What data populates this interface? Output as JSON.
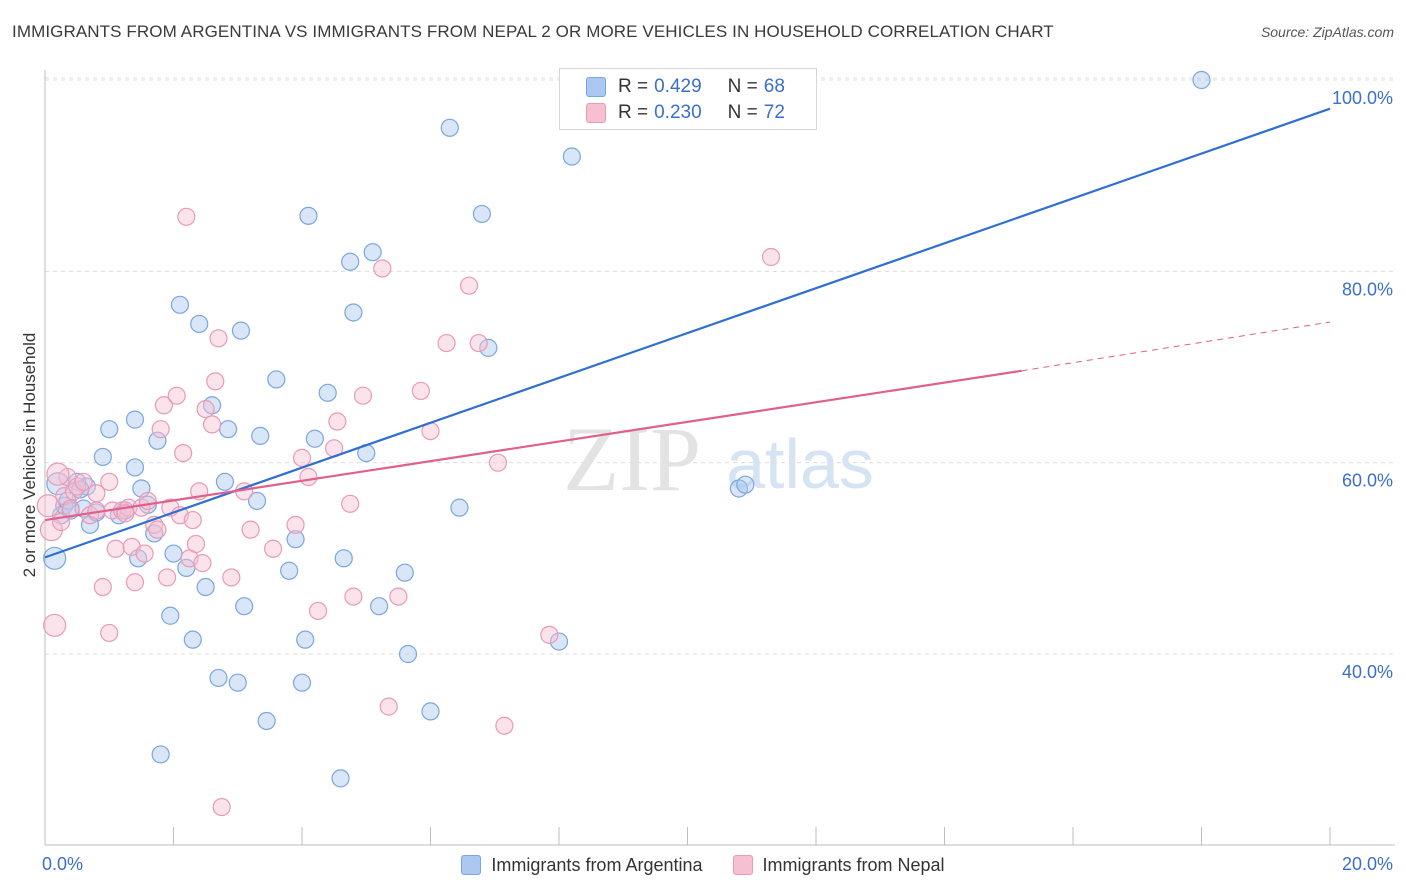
{
  "header": {
    "title": "IMMIGRANTS FROM ARGENTINA VS IMMIGRANTS FROM NEPAL 2 OR MORE VEHICLES IN HOUSEHOLD CORRELATION CHART",
    "source": "Source: ZipAtlas.com"
  },
  "watermark": {
    "zip": "ZIP",
    "atlas": "atlas"
  },
  "legend_top": {
    "argentina": {
      "r_label": "R =",
      "r_value": "0.429",
      "n_label": "N =",
      "n_value": "68"
    },
    "nepal": {
      "r_label": "R =",
      "r_value": "0.230",
      "n_label": "N =",
      "n_value": "72"
    }
  },
  "legend_bottom": {
    "argentina": "Immigrants from Argentina",
    "nepal": "Immigrants from Nepal"
  },
  "colors": {
    "blue_fill": "#aac8f0",
    "blue_stroke": "#7aa6df",
    "blue_line": "#2f6fd1",
    "pink_fill": "#f7c0d2",
    "pink_stroke": "#e99ab6",
    "pink_line": "#e0608c",
    "tick_text": "#3b6fc9",
    "grid": "#dcdcdc"
  },
  "chart_data": {
    "type": "scatter",
    "title": "IMMIGRANTS FROM ARGENTINA VS IMMIGRANTS FROM NEPAL 2 OR MORE VEHICLES IN HOUSEHOLD CORRELATION CHART",
    "xlabel": "",
    "ylabel": "2 or more Vehicles in Household",
    "xlim": [
      0,
      20
    ],
    "ylim": [
      18,
      102
    ],
    "x_tick_labels": [
      "0.0%",
      "20.0%"
    ],
    "y_ticks": [
      {
        "value": 40,
        "label": "40.0%"
      },
      {
        "value": 60,
        "label": "60.0%"
      },
      {
        "value": 80,
        "label": "80.0%"
      },
      {
        "value": 100,
        "label": "100.0%"
      }
    ],
    "series": [
      {
        "name": "Immigrants from Argentina",
        "color": "blue",
        "R": 0.429,
        "N": 68,
        "trend": {
          "x0": 0,
          "y0": 50.1,
          "x1": 20,
          "y1": 97.0
        },
        "points": [
          [
            0.15,
            50.0
          ],
          [
            0.2,
            57.8
          ],
          [
            0.25,
            54.5
          ],
          [
            0.3,
            55.5
          ],
          [
            0.35,
            56.0
          ],
          [
            0.4,
            55.0
          ],
          [
            0.5,
            58.0
          ],
          [
            0.6,
            55.2
          ],
          [
            0.65,
            57.5
          ],
          [
            0.7,
            53.5
          ],
          [
            0.8,
            54.8
          ],
          [
            0.9,
            60.6
          ],
          [
            1.0,
            63.5
          ],
          [
            1.15,
            54.5
          ],
          [
            1.4,
            64.5
          ],
          [
            1.4,
            59.5
          ],
          [
            1.45,
            50.0
          ],
          [
            1.5,
            57.3
          ],
          [
            1.6,
            55.6
          ],
          [
            1.7,
            52.6
          ],
          [
            1.75,
            62.3
          ],
          [
            1.95,
            44.0
          ],
          [
            2.0,
            50.5
          ],
          [
            2.1,
            76.5
          ],
          [
            2.2,
            49.0
          ],
          [
            2.3,
            41.5
          ],
          [
            2.4,
            74.5
          ],
          [
            2.5,
            47.0
          ],
          [
            2.6,
            66.0
          ],
          [
            2.8,
            58.0
          ],
          [
            2.85,
            63.5
          ],
          [
            3.0,
            37.0
          ],
          [
            3.05,
            73.8
          ],
          [
            3.1,
            45.0
          ],
          [
            3.3,
            56.0
          ],
          [
            3.35,
            62.8
          ],
          [
            3.45,
            33.0
          ],
          [
            3.6,
            68.7
          ],
          [
            3.8,
            48.7
          ],
          [
            3.9,
            52.0
          ],
          [
            4.0,
            37.0
          ],
          [
            4.05,
            41.5
          ],
          [
            4.1,
            85.8
          ],
          [
            4.2,
            62.5
          ],
          [
            4.4,
            67.3
          ],
          [
            4.6,
            27.0
          ],
          [
            4.65,
            50.0
          ],
          [
            4.75,
            81.0
          ],
          [
            4.8,
            75.7
          ],
          [
            5.0,
            61.0
          ],
          [
            5.1,
            82.0
          ],
          [
            5.2,
            45.0
          ],
          [
            5.6,
            48.5
          ],
          [
            5.65,
            40.0
          ],
          [
            6.0,
            34.0
          ],
          [
            6.3,
            95.0
          ],
          [
            6.45,
            55.3
          ],
          [
            6.8,
            86.0
          ],
          [
            6.9,
            72.0
          ],
          [
            8.0,
            41.3
          ],
          [
            8.2,
            92.0
          ],
          [
            10.8,
            57.3
          ],
          [
            10.9,
            57.7
          ],
          [
            18.0,
            100.0
          ],
          [
            1.8,
            29.5
          ],
          [
            2.7,
            37.5
          ],
          [
            1.25,
            55.0
          ],
          [
            0.55,
            57.2
          ]
        ]
      },
      {
        "name": "Immigrants from Nepal",
        "color": "pink",
        "R": 0.23,
        "N": 72,
        "trend": {
          "x0": 0,
          "y0": 54.0,
          "x1": 15.2,
          "y1": 69.6
        },
        "trend_dashed": {
          "x0": 15.2,
          "y0": 69.6,
          "x1": 20,
          "y1": 74.7
        },
        "points": [
          [
            0.05,
            55.5
          ],
          [
            0.1,
            53.0
          ],
          [
            0.15,
            43.0
          ],
          [
            0.3,
            56.5
          ],
          [
            0.35,
            58.5
          ],
          [
            0.4,
            55.2
          ],
          [
            0.45,
            57.0
          ],
          [
            0.5,
            57.5
          ],
          [
            0.6,
            58.0
          ],
          [
            0.7,
            54.5
          ],
          [
            0.8,
            55.0
          ],
          [
            0.9,
            47.0
          ],
          [
            1.0,
            58.0
          ],
          [
            1.05,
            55.0
          ],
          [
            1.1,
            51.0
          ],
          [
            1.2,
            55.0
          ],
          [
            1.3,
            55.3
          ],
          [
            1.35,
            51.2
          ],
          [
            1.4,
            47.5
          ],
          [
            1.5,
            55.3
          ],
          [
            1.55,
            50.5
          ],
          [
            1.6,
            56.0
          ],
          [
            1.7,
            53.5
          ],
          [
            1.75,
            53.0
          ],
          [
            1.8,
            63.5
          ],
          [
            1.85,
            66.0
          ],
          [
            1.9,
            48.0
          ],
          [
            1.95,
            55.3
          ],
          [
            2.05,
            67.0
          ],
          [
            2.1,
            54.5
          ],
          [
            2.15,
            61.0
          ],
          [
            2.2,
            85.7
          ],
          [
            2.25,
            50.0
          ],
          [
            2.3,
            54.0
          ],
          [
            2.35,
            51.5
          ],
          [
            2.4,
            57.0
          ],
          [
            2.45,
            49.5
          ],
          [
            2.5,
            65.6
          ],
          [
            2.6,
            64.0
          ],
          [
            2.65,
            68.5
          ],
          [
            2.7,
            73.0
          ],
          [
            2.75,
            24.0
          ],
          [
            2.9,
            48.0
          ],
          [
            3.1,
            57.0
          ],
          [
            3.2,
            53.0
          ],
          [
            3.9,
            53.5
          ],
          [
            4.0,
            60.5
          ],
          [
            4.1,
            58.5
          ],
          [
            4.25,
            44.5
          ],
          [
            4.5,
            61.5
          ],
          [
            4.55,
            64.3
          ],
          [
            4.75,
            55.7
          ],
          [
            4.8,
            46.0
          ],
          [
            4.95,
            67.0
          ],
          [
            5.25,
            80.3
          ],
          [
            5.5,
            46.0
          ],
          [
            5.35,
            34.5
          ],
          [
            5.85,
            67.5
          ],
          [
            6.0,
            63.3
          ],
          [
            6.25,
            72.5
          ],
          [
            6.6,
            78.5
          ],
          [
            6.75,
            72.5
          ],
          [
            7.05,
            60.0
          ],
          [
            7.15,
            32.5
          ],
          [
            7.85,
            42.0
          ],
          [
            11.3,
            81.5
          ],
          [
            1.0,
            42.2
          ],
          [
            0.8,
            56.8
          ],
          [
            1.25,
            54.7
          ],
          [
            0.2,
            58.8
          ],
          [
            3.55,
            51.0
          ],
          [
            0.25,
            53.8
          ]
        ]
      }
    ]
  }
}
